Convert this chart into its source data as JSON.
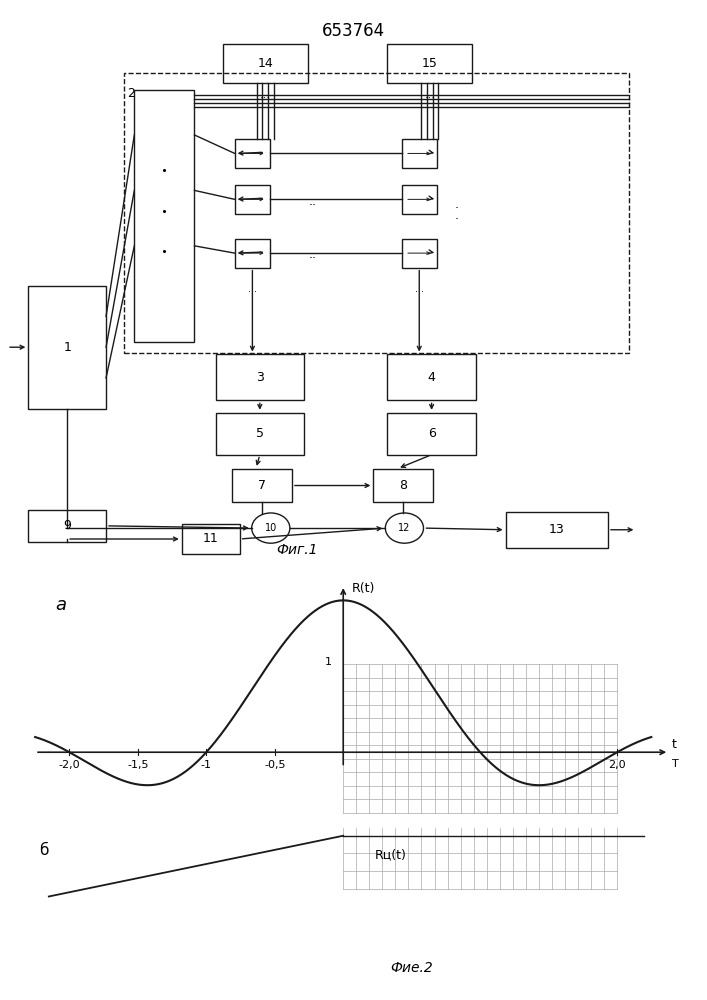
{
  "title": "653764",
  "title_fontsize": 12,
  "fig1_label": "Фиг.1",
  "fig2_label": "Фие.2",
  "bg_color": "#ffffff",
  "line_color": "#1a1a1a",
  "grid_color": "#aaaaaa",
  "label_a": "a",
  "label_b": "б",
  "axis_label_R": "R(t)",
  "axis_label_Ru": "Rц(t)",
  "xtick_vals": [
    -2.0,
    -1.5,
    -1.0,
    -0.5,
    2.0
  ],
  "xtick_labels": [
    "-2,0",
    "-1,5",
    "-1",
    "-0,5",
    "2,0"
  ]
}
